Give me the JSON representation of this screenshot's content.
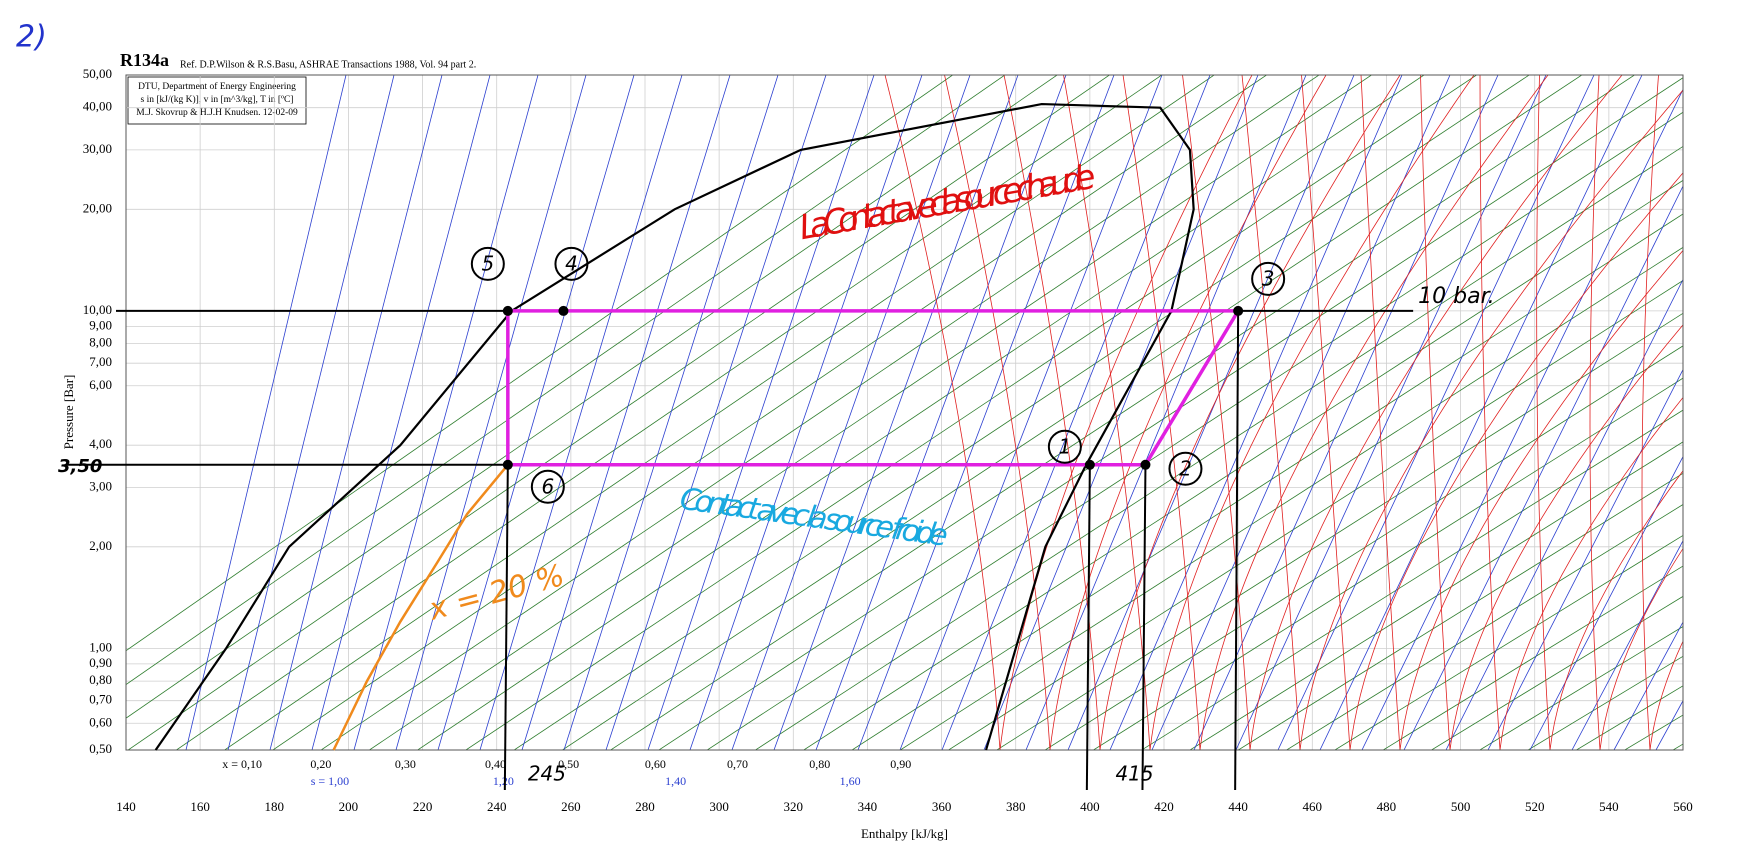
{
  "chart_data": {
    "type": "line",
    "title": "R134a",
    "subtitle": "Ref. D.P.Wilson & R.S.Basu, ASHRAE Transactions 1988, Vol. 94 part 2.",
    "info_box": [
      "DTU, Department of Energy Engineering",
      "s in [kJ/(kg K)], v in [m^3/kg], T in [ºC]",
      "M.J. Skovrup & H.J.H Knudsen. 12-02-09"
    ],
    "xlabel": "Enthalpy [kJ/kg]",
    "ylabel": "Pressure [Bar]",
    "yscale": "log",
    "grid": true,
    "xlim": [
      140,
      560
    ],
    "ylim": [
      0.5,
      50
    ],
    "xticks": [
      140,
      160,
      180,
      200,
      220,
      240,
      260,
      280,
      300,
      320,
      340,
      360,
      380,
      400,
      420,
      440,
      460,
      480,
      500,
      520,
      540,
      560
    ],
    "yticks": [
      {
        "value": 50,
        "label": "50,00"
      },
      {
        "value": 40,
        "label": "40,00"
      },
      {
        "value": 30,
        "label": "30,00"
      },
      {
        "value": 20,
        "label": "20,00"
      },
      {
        "value": 10,
        "label": "10,00"
      },
      {
        "value": 9,
        "label": "9,00"
      },
      {
        "value": 8,
        "label": "8,00"
      },
      {
        "value": 7,
        "label": "7,00"
      },
      {
        "value": 6,
        "label": "6,00"
      },
      {
        "value": 4,
        "label": "4,00"
      },
      {
        "value": 3,
        "label": "3,00"
      },
      {
        "value": 2,
        "label": "2,00"
      },
      {
        "value": 1,
        "label": "1,00"
      },
      {
        "value": 0.9,
        "label": "0,90"
      },
      {
        "value": 0.8,
        "label": "0,80"
      },
      {
        "value": 0.7,
        "label": "0,70"
      },
      {
        "value": 0.6,
        "label": "0,60"
      },
      {
        "value": 0.5,
        "label": "0,50"
      }
    ],
    "saturation_curve": {
      "color": "#000000",
      "x": [
        148,
        167,
        184,
        214,
        244,
        288,
        322,
        387,
        419,
        427,
        428,
        422,
        399,
        388,
        380,
        372
      ],
      "y": [
        0.5,
        1,
        2,
        4,
        10,
        20,
        30,
        41,
        40,
        30,
        20,
        10,
        3.5,
        2,
        1,
        0.5
      ]
    },
    "cycle": {
      "color": "#e020e0",
      "x": [
        440,
        258,
        243,
        243,
        400,
        415,
        440
      ],
      "y": [
        10,
        10,
        10,
        3.5,
        3.5,
        3.5,
        10
      ]
    },
    "points": [
      {
        "label": "1",
        "h": 400,
        "p": 3.5
      },
      {
        "label": "2",
        "h": 415,
        "p": 3.5
      },
      {
        "label": "3",
        "h": 440,
        "p": 10
      },
      {
        "label": "4",
        "h": 258,
        "p": 10
      },
      {
        "label": "5",
        "h": 243,
        "p": 10
      },
      {
        "label": "6",
        "h": 243,
        "p": 3.5
      }
    ],
    "quality_curve": {
      "color": "#f08a1c",
      "label": "x = 20 %",
      "x": [
        196,
        205,
        214,
        224,
        232,
        243
      ],
      "y": [
        0.5,
        0.8,
        1.2,
        1.8,
        2.5,
        3.5
      ]
    },
    "quality_labels": [
      "x = 0,10",
      "0,20",
      "0,30",
      "0,40",
      "0,50",
      "0,60",
      "0,70",
      "0,80",
      "0,90"
    ],
    "entropy_labels": [
      "s = 1,00",
      "1,20",
      "1,40",
      "1,60"
    ],
    "annotations": {
      "corner": "2)",
      "low_pressure": "3,50",
      "h_low": "245",
      "h_mid": "415",
      "high_pressure": "10 bar.",
      "hot": "La Contact avec la source chaude",
      "cold": "Contact avec la source froide"
    }
  }
}
